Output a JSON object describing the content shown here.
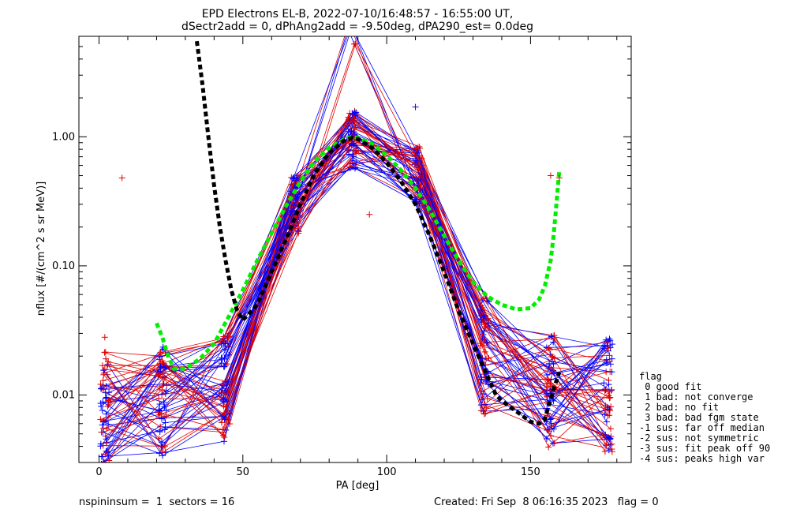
{
  "chart_data": {
    "type": "line",
    "title_line1": "EPD Electrons EL-B, 2022-07-10/16:48:57 - 16:55:00 UT,",
    "title_line2": "dSectr2add = 0, dPhAng2add = -9.50deg, dPA290_est=   0.0deg",
    "xlabel": "PA [deg]",
    "ylabel": "nflux [#/(cm^2 s sr MeV)]",
    "xlim": [
      -7,
      185
    ],
    "ylim": [
      0.003,
      6
    ],
    "yscale": "log",
    "x_ticks": [
      0,
      50,
      100,
      150
    ],
    "x_tick_labels": [
      "0",
      "50",
      "100",
      "150"
    ],
    "y_ticks": [
      0.01,
      0.1,
      1.0
    ],
    "y_tick_labels": [
      "0.01",
      "0.10",
      "1.00"
    ],
    "colors": {
      "red_spectra": "#e00000",
      "blue_spectra": "#0000ff",
      "green_fit": "#00ee00",
      "black_fit": "#000000"
    },
    "series": [
      {
        "color": "#00ee00",
        "style": "dashed",
        "x": [
          20,
          22,
          24,
          26,
          30,
          35,
          40,
          45,
          50,
          55,
          60,
          65,
          70,
          75,
          80,
          85,
          88,
          90,
          95,
          100,
          105,
          110,
          115,
          120,
          125,
          130,
          135,
          140,
          145,
          150,
          153,
          155,
          157,
          158,
          159,
          160
        ],
        "y": [
          0.036,
          0.028,
          0.02,
          0.016,
          0.016,
          0.019,
          0.025,
          0.04,
          0.065,
          0.11,
          0.18,
          0.29,
          0.45,
          0.65,
          0.82,
          0.95,
          1.0,
          0.98,
          0.88,
          0.72,
          0.55,
          0.4,
          0.27,
          0.17,
          0.11,
          0.075,
          0.058,
          0.05,
          0.046,
          0.047,
          0.055,
          0.07,
          0.11,
          0.17,
          0.3,
          0.55
        ]
      },
      {
        "color": "#000000",
        "style": "dashed",
        "x": [
          34,
          36,
          38,
          40,
          42,
          44,
          46,
          48,
          50,
          55,
          60,
          65,
          70,
          75,
          80,
          85,
          88,
          90,
          95,
          100,
          105,
          110,
          115,
          120,
          125,
          130,
          135,
          138,
          140,
          145,
          150,
          153,
          155,
          156,
          158,
          160
        ],
        "y": [
          5.5,
          2.5,
          1.0,
          0.42,
          0.2,
          0.11,
          0.065,
          0.045,
          0.038,
          0.05,
          0.09,
          0.16,
          0.3,
          0.52,
          0.75,
          0.93,
          0.98,
          0.96,
          0.82,
          0.63,
          0.45,
          0.3,
          0.17,
          0.09,
          0.045,
          0.025,
          0.014,
          0.01,
          0.009,
          0.0075,
          0.0062,
          0.006,
          0.0065,
          0.0078,
          0.011,
          0.015
        ]
      }
    ],
    "outlier_points": [
      {
        "x": 8,
        "y": 0.48,
        "color": "#e00000"
      },
      {
        "x": 2,
        "y": 0.028,
        "color": "#e00000"
      },
      {
        "x": 157,
        "y": 0.5,
        "color": "#e00000"
      },
      {
        "x": 160,
        "y": 0.48,
        "color": "#e00000"
      },
      {
        "x": 110,
        "y": 1.7,
        "color": "#0000ff"
      },
      {
        "x": 94,
        "y": 0.25,
        "color": "#e00000"
      }
    ],
    "legend": {
      "title": "flag",
      "entries": [
        " 0 good fit",
        " 1 bad: not converge",
        " 2 bad: no fit",
        " 3 bad: bad fgm state",
        "-1 sus: far off median",
        "-2 sus: not symmetric",
        "-3 sus: fit peak off 90",
        "-4 sus: peaks high var"
      ]
    }
  },
  "footer": {
    "left": "nspininsum =  1  sectors = 16",
    "right": "Created: Fri Sep  8 06:16:35 2023   flag = 0"
  }
}
